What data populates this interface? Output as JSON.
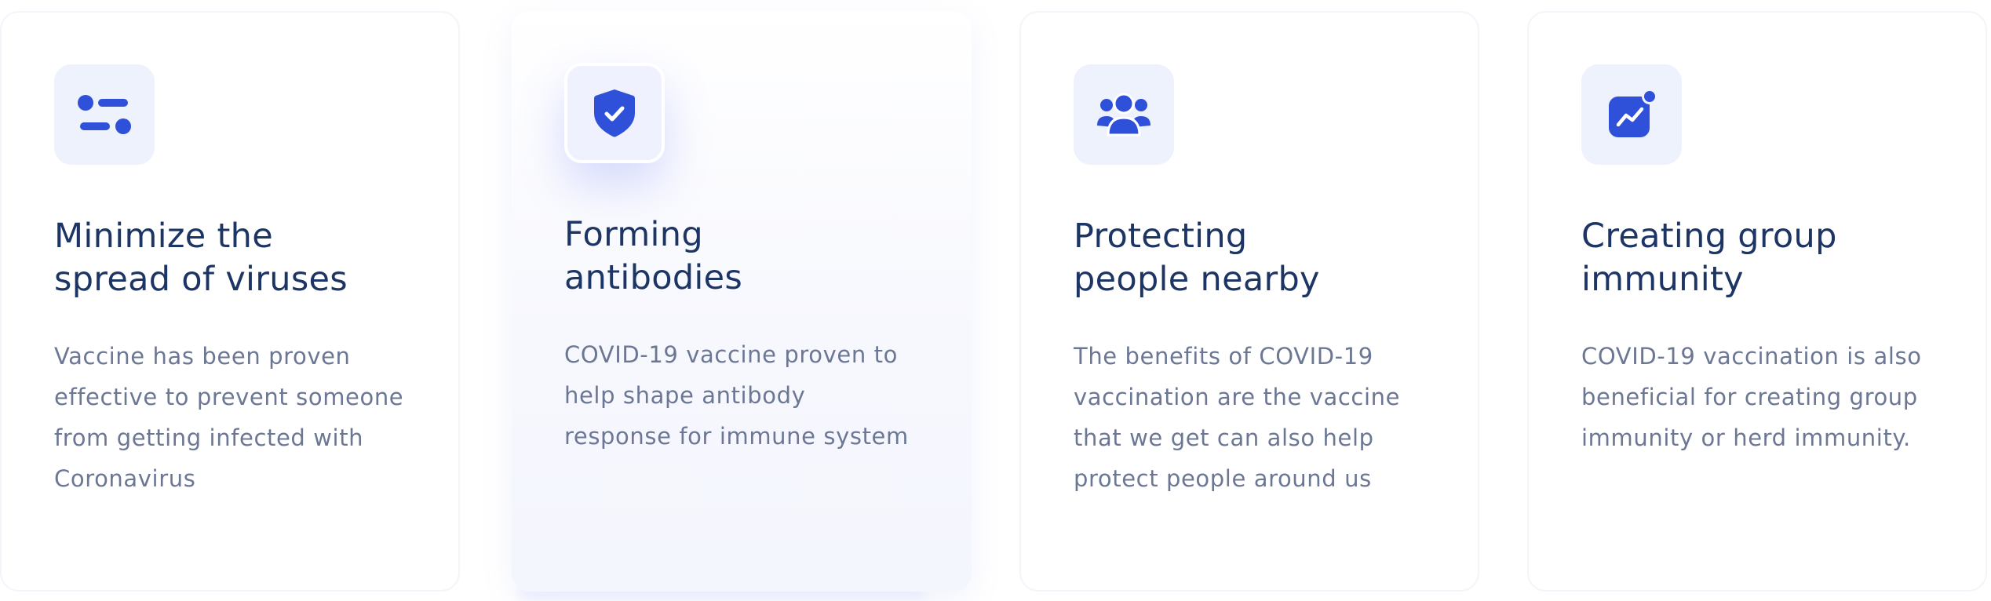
{
  "accent_color": "#2f50d8",
  "title_color": "#1d3564",
  "text_color": "#6b7794",
  "cards": [
    {
      "icon": "settings-sliders-icon",
      "title_line1": "Minimize the",
      "title_line2": "spread of viruses",
      "desc_lines": [
        "Vaccine has been proven",
        "effective to prevent someone",
        "from getting infected with",
        "Coronavirus"
      ]
    },
    {
      "icon": "shield-check-icon",
      "title_line1": "Forming",
      "title_line2": "antibodies",
      "desc_lines": [
        "COVID-19 vaccine proven to",
        "help shape antibody",
        "response for immune system"
      ]
    },
    {
      "icon": "people-group-icon",
      "title_line1": "Protecting",
      "title_line2": "people nearby",
      "desc_lines": [
        "The benefits of COVID-19",
        "vaccination are the vaccine",
        "that we get can also help",
        "protect people around us"
      ]
    },
    {
      "icon": "trend-chart-icon",
      "title_line1": "Creating group",
      "title_line2": "immunity",
      "desc_lines": [
        "COVID-19 vaccination is also",
        "beneficial for creating group",
        "immunity or herd immunity."
      ]
    }
  ]
}
